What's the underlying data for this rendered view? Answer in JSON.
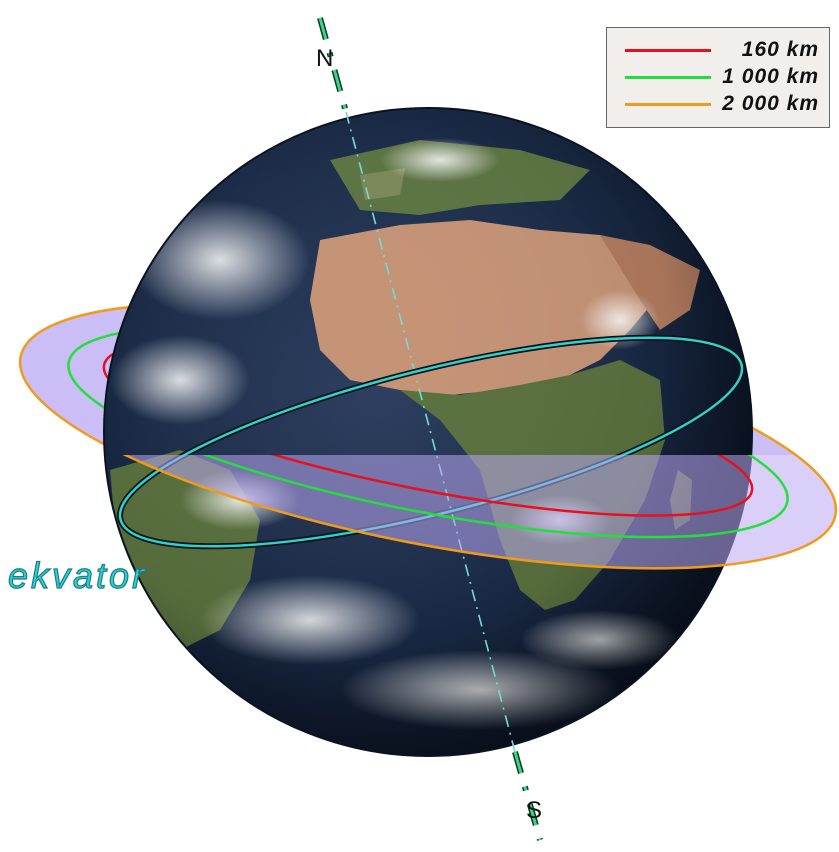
{
  "axis": {
    "north_label": "N",
    "south_label": "S"
  },
  "equator": {
    "label": "ekvator",
    "color": "#2fd0d4"
  },
  "legend": {
    "items": [
      {
        "label": "160 km",
        "color": "#e8101e"
      },
      {
        "label": "1 000 km",
        "color": "#22e03a"
      },
      {
        "label": "2 000 km",
        "color": "#f19a1c"
      }
    ]
  },
  "colors": {
    "orbit_fill": "#b9a7f2",
    "ocean": "#1b2c49",
    "land_desert": "#c59376",
    "land_green": "#59703e",
    "axis": "#3bd38f"
  },
  "icons": {
    "globe": "earth-globe-icon"
  }
}
